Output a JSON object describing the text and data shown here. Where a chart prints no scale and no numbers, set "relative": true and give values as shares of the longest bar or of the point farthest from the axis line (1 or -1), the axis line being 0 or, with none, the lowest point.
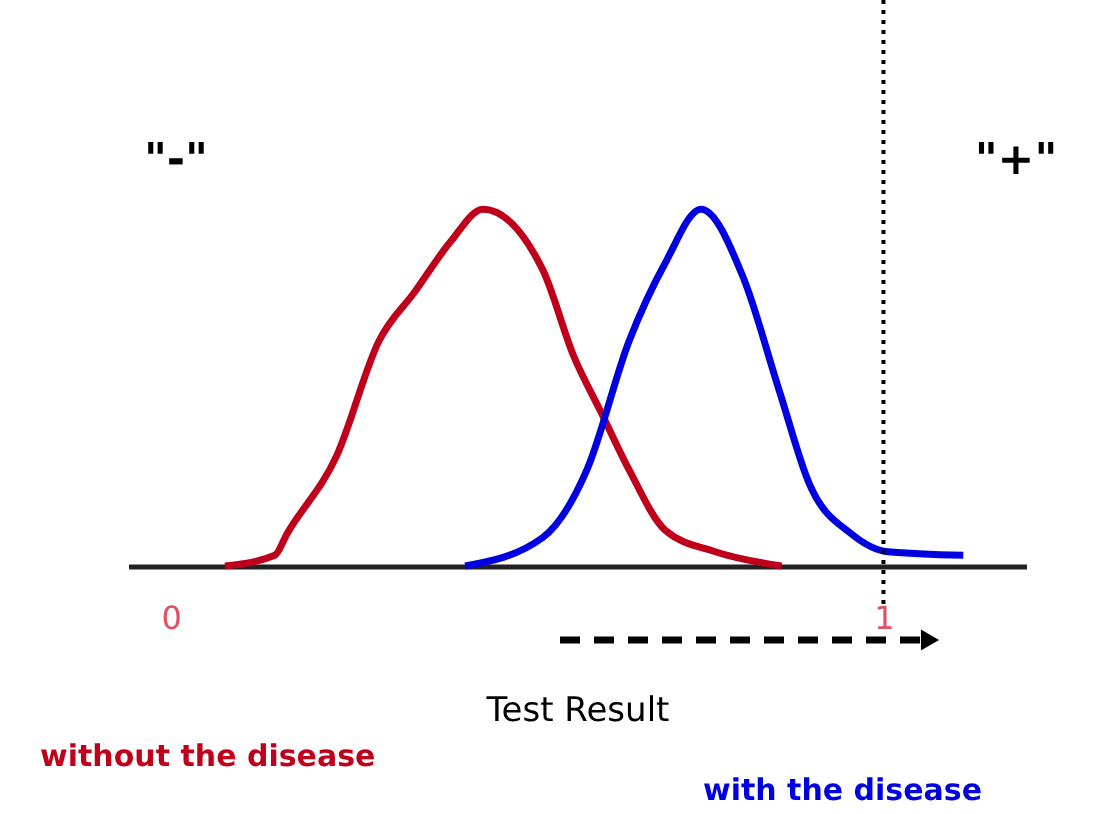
{
  "chart_data": {
    "type": "line",
    "relative": true,
    "xlabel": "Test Result",
    "xlim": [
      -0.06,
      1.2
    ],
    "xticks": [
      0,
      1
    ],
    "series": [
      {
        "name": "without the disease",
        "color": "#c0001a",
        "x": [
          0.076,
          0.146,
          0.163,
          0.233,
          0.292,
          0.343,
          0.393,
          0.438,
          0.522,
          0.565,
          0.604,
          0.643,
          0.694,
          0.764,
          0.857
        ],
        "values": [
          0,
          0.03,
          0.09,
          0.31,
          0.63,
          0.77,
          0.91,
          1,
          0.83,
          0.59,
          0.43,
          0.27,
          0.1,
          0.04,
          0
        ]
      },
      {
        "name": "with the disease",
        "color": "#0000e0",
        "x": [
          0.413,
          0.522,
          0.584,
          0.643,
          0.694,
          0.744,
          0.803,
          0.854,
          0.896,
          0.955,
          1.006,
          1.112
        ],
        "values": [
          0,
          0.08,
          0.27,
          0.63,
          0.85,
          1,
          0.81,
          0.49,
          0.23,
          0.09,
          0.04,
          0.03
        ]
      }
    ],
    "ref_lines": [
      {
        "axis": "x",
        "value": 1,
        "color": "#000000",
        "line_style": "dotted"
      }
    ],
    "annotations": [
      "\"-\"",
      "\"+\""
    ]
  }
}
